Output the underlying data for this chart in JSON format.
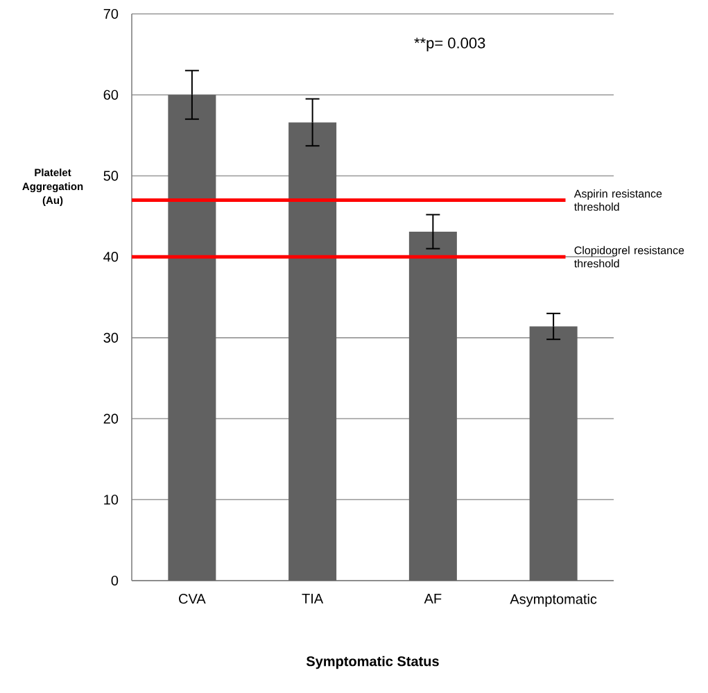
{
  "chart_data": {
    "type": "bar",
    "xlabel": "Symptomatic Status",
    "ylabel": "Platelet Aggregation (Au)",
    "categories": [
      "CVA",
      "TIA",
      "AF",
      "Asymptomatic"
    ],
    "values": [
      60,
      56.6,
      43.1,
      31.4
    ],
    "errors": [
      3,
      2.9,
      2.1,
      1.6
    ],
    "color": "#616161",
    "ylim": [
      0,
      70
    ],
    "yticks": [
      0,
      10,
      20,
      30,
      40,
      50,
      60,
      70
    ],
    "grid": "y",
    "ref_lines": [
      {
        "axis": "y",
        "value": 47,
        "label": "Aspirin resistance threshold",
        "color": "#ff0000"
      },
      {
        "axis": "y",
        "value": 40,
        "label": "Clopidogrel resistance threshold",
        "color": "#ff0000"
      }
    ],
    "annotations": [
      "**p= 0.003"
    ]
  }
}
